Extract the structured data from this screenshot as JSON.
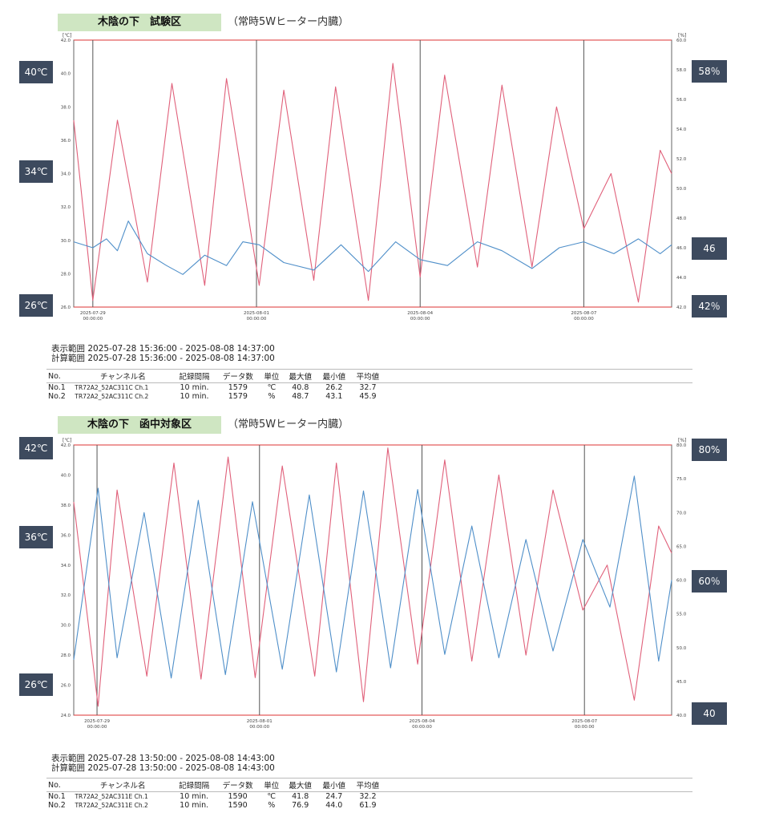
{
  "panels": [
    {
      "title": "木陰の下　試験区",
      "note": "（常時5Wヒーター内臓）",
      "badges_left": [
        "40℃",
        "34℃",
        "26℃"
      ],
      "badges_right": [
        "58％",
        "46",
        "42％"
      ],
      "unit_left": "[℃]",
      "unit_right": "[%]",
      "display_range": "表示範囲 2025-07-28 15:36:00 - 2025-08-08 14:37:00",
      "calc_range": "計算範囲 2025-07-28 15:36:00 - 2025-08-08 14:37:00",
      "headers": [
        "No.",
        "チャンネル名",
        "記録間隔",
        "データ数",
        "単位",
        "最大値",
        "最小値",
        "平均値"
      ],
      "rows": [
        [
          "No.1",
          "TR72A2_52AC311C Ch.1",
          "10 min.",
          "1579",
          "℃",
          "40.8",
          "26.2",
          "32.7"
        ],
        [
          "No.2",
          "TR72A2_52AC311C Ch.2",
          "10 min.",
          "1579",
          "%",
          "48.7",
          "43.1",
          "45.9"
        ]
      ]
    },
    {
      "title": "木陰の下　函中対象区",
      "note": "（常時5Wヒーター内臓）",
      "badges_left": [
        "42℃",
        "36℃",
        "26℃"
      ],
      "badges_right": [
        "80%",
        "60％",
        "40"
      ],
      "unit_left": "[℃]",
      "unit_right": "[%]",
      "display_range": "表示範囲 2025-07-28 13:50:00 - 2025-08-08 14:43:00",
      "calc_range": "計算範囲 2025-07-28 13:50:00 - 2025-08-08 14:43:00",
      "headers": [
        "No.",
        "チャンネル名",
        "記録間隔",
        "データ数",
        "単位",
        "最大値",
        "最小値",
        "平均値"
      ],
      "rows": [
        [
          "No.1",
          "TR72A2_52AC311E Ch.1",
          "10 min.",
          "1590",
          "℃",
          "41.8",
          "24.7",
          "32.2"
        ],
        [
          "No.2",
          "TR72A2_52AC311E Ch.2",
          "10 min.",
          "1590",
          "%",
          "76.9",
          "44.0",
          "61.9"
        ]
      ]
    }
  ],
  "chart_data": [
    {
      "type": "line",
      "title": "木陰の下　試験区",
      "x_ticks": [
        "2025-07-29 00:00:00",
        "2025-08-01 00:00:00",
        "2025-08-04 00:00:00",
        "2025-08-07 00:00:00"
      ],
      "x_ticks_days": [
        0.35,
        3.35,
        6.35,
        9.35
      ],
      "xlim_days": [
        0,
        10.96
      ],
      "left_axis": {
        "unit": "[℃]",
        "ylim": [
          26,
          42
        ],
        "ticks": [
          26.0,
          28.0,
          30.0,
          32.0,
          34.0,
          36.0,
          38.0,
          40.0,
          42.0
        ]
      },
      "right_axis": {
        "unit": "[%]",
        "ylim": [
          42,
          60
        ],
        "ticks": [
          42.0,
          44.0,
          46.0,
          48.0,
          50.0,
          52.0,
          54.0,
          56.0,
          58.0,
          60.0
        ]
      },
      "series": [
        {
          "color": "#e0607a",
          "axis": "left",
          "x": [
            0.0,
            0.35,
            0.8,
            1.35,
            1.8,
            2.4,
            2.8,
            3.4,
            3.85,
            4.4,
            4.8,
            5.4,
            5.85,
            6.35,
            6.8,
            7.4,
            7.85,
            8.4,
            8.85,
            9.35,
            9.85,
            10.35,
            10.75,
            10.96
          ],
          "y": [
            37.2,
            26.4,
            37.2,
            27.5,
            39.4,
            27.3,
            39.7,
            27.3,
            39.0,
            27.6,
            39.2,
            26.4,
            40.6,
            27.8,
            39.9,
            28.4,
            39.3,
            28.4,
            38.0,
            30.7,
            34.0,
            26.3,
            35.4,
            34.0
          ]
        },
        {
          "color": "#4f8fc9",
          "axis": "right",
          "x": [
            0.0,
            0.35,
            0.6,
            0.8,
            1.0,
            1.35,
            1.7,
            2.0,
            2.4,
            2.8,
            3.1,
            3.4,
            3.85,
            4.4,
            4.9,
            5.4,
            5.9,
            6.35,
            6.85,
            7.4,
            7.85,
            8.4,
            8.9,
            9.35,
            9.9,
            10.35,
            10.75,
            10.96
          ],
          "y": [
            46.4,
            46.0,
            46.6,
            45.8,
            47.8,
            45.6,
            44.8,
            44.2,
            45.5,
            44.8,
            46.4,
            46.2,
            45.0,
            44.5,
            46.2,
            44.4,
            46.4,
            45.2,
            44.8,
            46.4,
            45.8,
            44.6,
            46.0,
            46.4,
            45.6,
            46.6,
            45.6,
            46.2
          ]
        }
      ]
    },
    {
      "type": "line",
      "title": "木陰の下　函中対象区",
      "x_ticks": [
        "2025-07-29 00:00:00",
        "2025-08-01 00:00:00",
        "2025-08-04 00:00:00",
        "2025-08-07 00:00:00"
      ],
      "x_ticks_days": [
        0.43,
        3.43,
        6.43,
        9.43
      ],
      "xlim_days": [
        0,
        11.04
      ],
      "left_axis": {
        "unit": "[℃]",
        "ylim": [
          24,
          42
        ],
        "ticks": [
          24.0,
          26.0,
          28.0,
          30.0,
          32.0,
          34.0,
          36.0,
          38.0,
          40.0,
          42.0
        ]
      },
      "right_axis": {
        "unit": "[%]",
        "ylim": [
          40,
          80
        ],
        "ticks": [
          40.0,
          45.0,
          50.0,
          55.0,
          60.0,
          65.0,
          70.0,
          75.0,
          80.0
        ]
      },
      "series": [
        {
          "color": "#e0607a",
          "axis": "left",
          "x": [
            0.0,
            0.45,
            0.8,
            1.35,
            1.85,
            2.35,
            2.85,
            3.35,
            3.85,
            4.45,
            4.85,
            5.35,
            5.8,
            6.35,
            6.85,
            7.35,
            7.85,
            8.35,
            8.85,
            9.4,
            9.85,
            10.35,
            10.8,
            11.04
          ],
          "y": [
            38.2,
            24.6,
            39.0,
            26.6,
            40.8,
            26.4,
            41.2,
            26.5,
            40.6,
            26.6,
            40.8,
            24.9,
            41.8,
            27.4,
            41.0,
            27.6,
            40.0,
            28.0,
            39.0,
            31.0,
            34.0,
            25.0,
            36.6,
            34.8
          ]
        },
        {
          "color": "#4f8fc9",
          "axis": "right",
          "x": [
            0.0,
            0.45,
            0.8,
            1.3,
            1.8,
            2.3,
            2.8,
            3.3,
            3.85,
            4.35,
            4.85,
            5.35,
            5.85,
            6.35,
            6.85,
            7.35,
            7.85,
            8.35,
            8.85,
            9.4,
            9.9,
            10.35,
            10.8,
            11.04
          ],
          "y": [
            48.2,
            73.6,
            48.5,
            70.0,
            45.5,
            71.8,
            46.0,
            71.6,
            46.8,
            72.6,
            46.4,
            73.2,
            47.0,
            73.4,
            49.0,
            68.0,
            48.5,
            66.0,
            49.5,
            66.0,
            56.0,
            75.4,
            48.0,
            60.0
          ]
        }
      ]
    }
  ]
}
